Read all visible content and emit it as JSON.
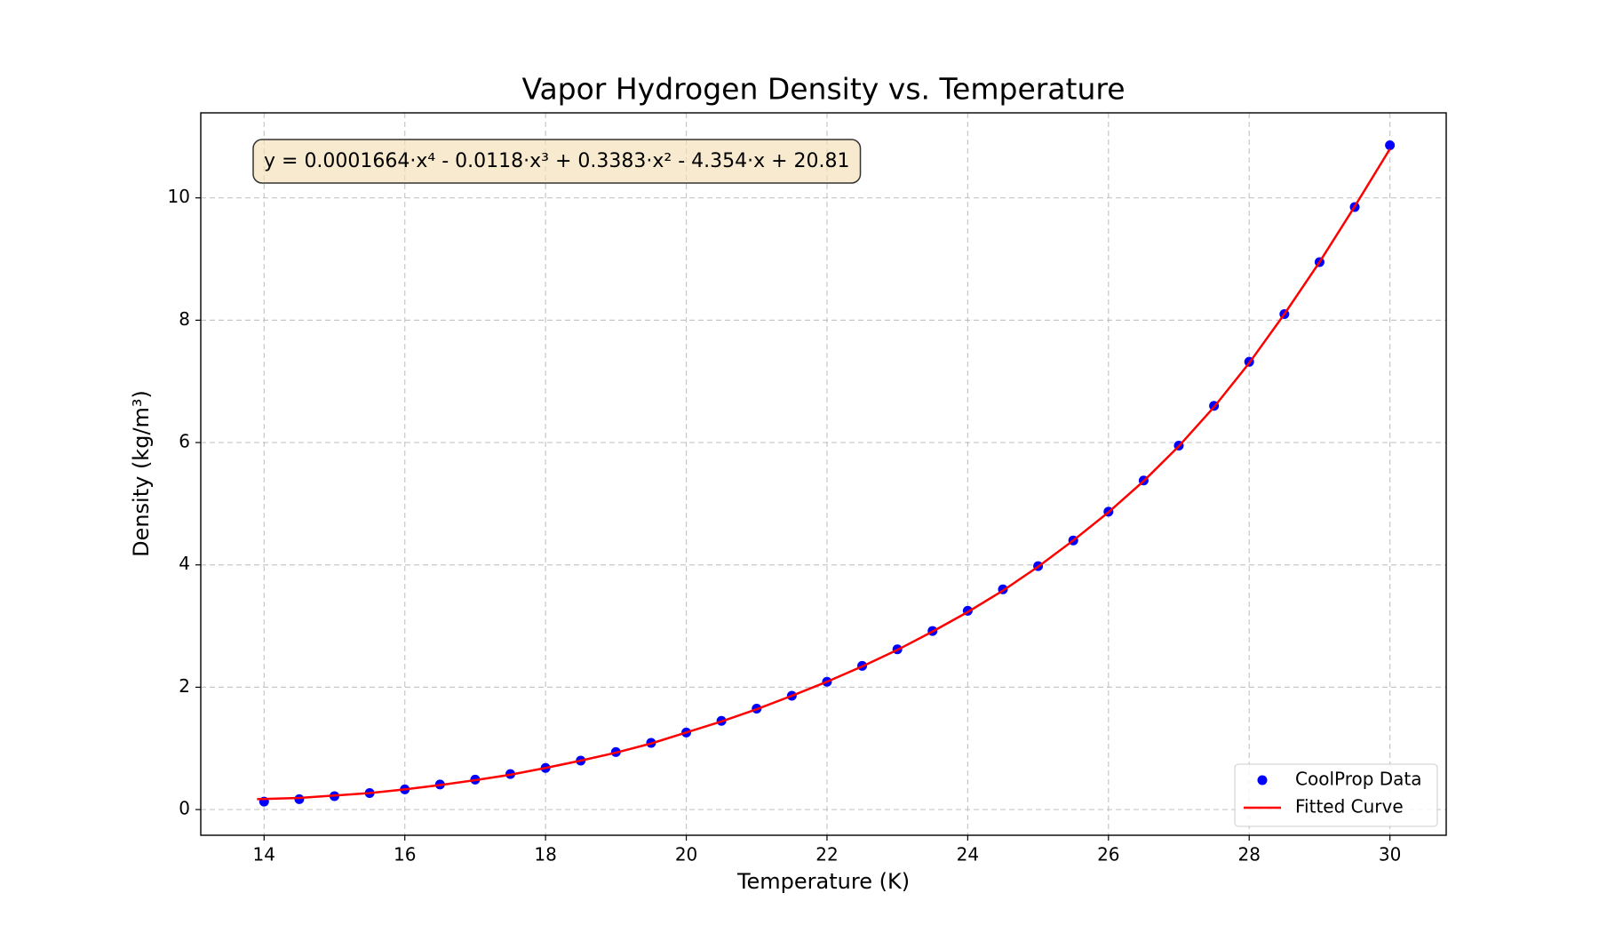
{
  "chart_data": {
    "type": "scatter",
    "title": "Vapor Hydrogen Density vs. Temperature",
    "x_label": "Temperature (K)",
    "y_label": "Density (kg/m³)",
    "annotation": "y = 0.0001664·x⁴ - 0.0118·x³ + 0.3383·x² - 4.354·x + 20.81",
    "xlim": [
      13.1,
      30.8
    ],
    "ylim": [
      -0.42,
      11.39
    ],
    "xticks": [
      14,
      16,
      18,
      20,
      22,
      24,
      26,
      28,
      30
    ],
    "yticks": [
      0,
      2,
      4,
      6,
      8,
      10
    ],
    "grid": true,
    "legend": "lower right",
    "series": [
      {
        "name": "CoolProp Data",
        "type": "scatter",
        "color": "#0000ff",
        "x": [
          14,
          14.5,
          15,
          15.5,
          16,
          16.5,
          17,
          17.5,
          18,
          18.5,
          19,
          19.5,
          20,
          20.5,
          21,
          21.5,
          22,
          22.5,
          23,
          23.5,
          24,
          24.5,
          25,
          25.5,
          26,
          26.5,
          27,
          27.5,
          28,
          28.5,
          29,
          29.5,
          30
        ],
        "values": [
          0.13,
          0.17,
          0.22,
          0.27,
          0.33,
          0.41,
          0.49,
          0.58,
          0.68,
          0.8,
          0.94,
          1.09,
          1.26,
          1.45,
          1.65,
          1.86,
          2.09,
          2.35,
          2.62,
          2.92,
          3.25,
          3.6,
          3.98,
          4.4,
          4.87,
          5.38,
          5.95,
          6.6,
          7.32,
          8.1,
          8.95,
          9.85,
          10.86
        ]
      },
      {
        "name": "Fitted Curve",
        "type": "line",
        "color": "#ff0000",
        "x": [
          13.9,
          14.5,
          15,
          15.5,
          16,
          16.5,
          17,
          17.5,
          18,
          18.5,
          19,
          19.5,
          20,
          20.5,
          21,
          21.5,
          22,
          22.5,
          23,
          23.5,
          24,
          24.5,
          25,
          25.5,
          26,
          26.5,
          27,
          27.5,
          28,
          28.5,
          29,
          29.5,
          30
        ],
        "values": [
          0.17,
          0.19,
          0.23,
          0.27,
          0.33,
          0.4,
          0.48,
          0.57,
          0.68,
          0.8,
          0.93,
          1.08,
          1.26,
          1.44,
          1.64,
          1.86,
          2.09,
          2.34,
          2.61,
          2.91,
          3.23,
          3.58,
          3.97,
          4.4,
          4.86,
          5.37,
          5.94,
          6.58,
          7.3,
          8.1,
          8.95,
          9.86,
          10.8
        ]
      }
    ]
  }
}
